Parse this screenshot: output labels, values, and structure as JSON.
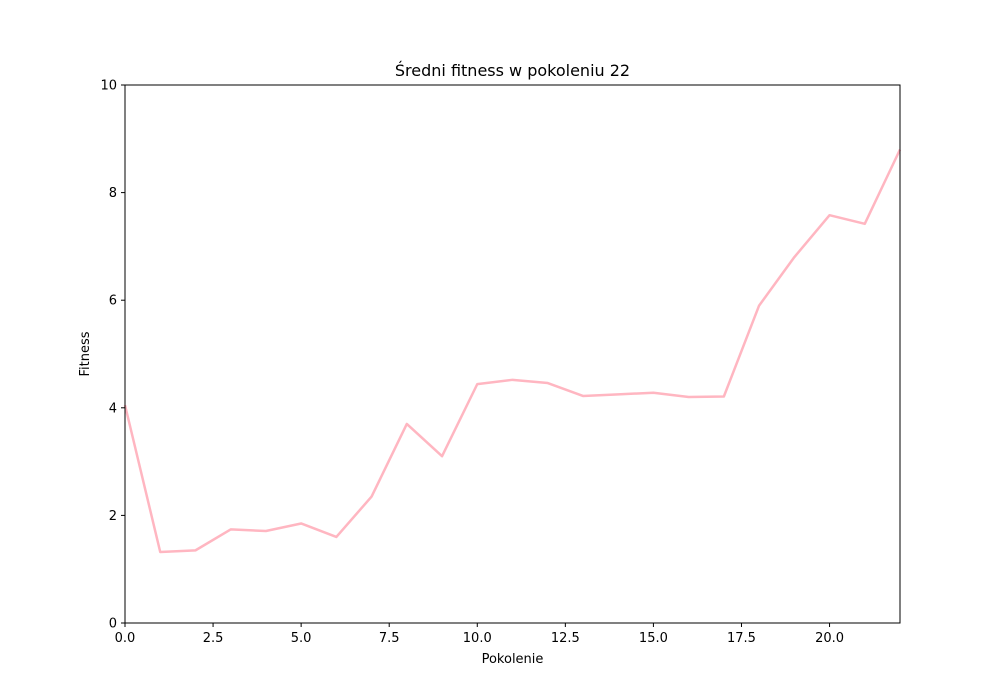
{
  "chart_data": {
    "type": "line",
    "title": "Średni fitness w pokoleniu 22",
    "xlabel": "Pokolenie",
    "ylabel": "Fitness",
    "xlim": [
      0,
      22
    ],
    "ylim": [
      0,
      10
    ],
    "xticks": [
      0,
      2.5,
      5,
      7.5,
      10,
      12.5,
      15,
      17.5,
      20
    ],
    "xtick_labels": [
      "0.0",
      "2.5",
      "5.0",
      "7.5",
      "10.0",
      "12.5",
      "15.0",
      "17.5",
      "20.0"
    ],
    "yticks": [
      0,
      2,
      4,
      6,
      8,
      10
    ],
    "ytick_labels": [
      "0",
      "2",
      "4",
      "6",
      "8",
      "10"
    ],
    "grid": false,
    "series": [
      {
        "color": "#ffb6c1",
        "x": [
          0,
          1,
          2,
          3,
          4,
          5,
          6,
          7,
          8,
          9,
          10,
          11,
          12,
          13,
          14,
          15,
          16,
          17,
          18,
          19,
          20,
          21,
          22
        ],
        "values": [
          4.05,
          1.32,
          1.35,
          1.74,
          1.71,
          1.85,
          1.6,
          2.35,
          3.7,
          3.1,
          4.44,
          4.52,
          4.46,
          4.22,
          4.25,
          4.28,
          4.2,
          4.21,
          5.9,
          6.8,
          7.58,
          7.42,
          8.8
        ]
      }
    ]
  }
}
